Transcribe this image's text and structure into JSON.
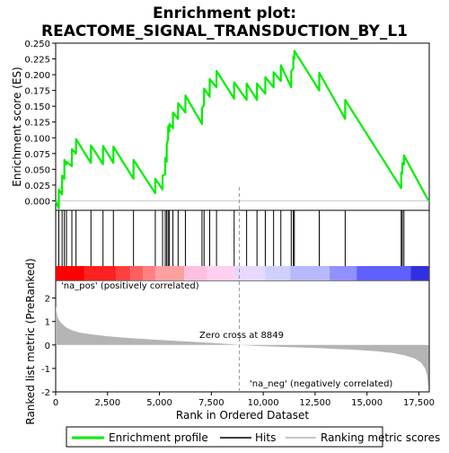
{
  "title_line1": "Enrichment plot:",
  "title_line2": "REACTOME_SIGNAL_TRANSDUCTION_BY_L1",
  "top_ylabel": "Enrichment score (ES)",
  "bottom_ylabel": "Ranked list metric (PreRanked)",
  "xlabel": "Rank in Ordered Dataset",
  "pos_label": "'na_pos' (positively correlated)",
  "neg_label": "'na_neg' (negatively correlated)",
  "zero_cross_label": "Zero cross at 8849",
  "legend": {
    "enrichment": "Enrichment profile",
    "hits": "Hits",
    "metric": "Ranking metric scores"
  },
  "colors": {
    "enrichment_line": "#00ee00",
    "metric_fill": "#b4b4b4",
    "pos_label": "#ff0000",
    "neg_label": "#0000cc",
    "zero_cross_line": "#999999"
  },
  "chart_data": {
    "type": "line",
    "x_range": [
      0,
      18000
    ],
    "x_ticks": [
      0,
      2500,
      5000,
      7500,
      10000,
      12500,
      15000,
      17500
    ],
    "x_tick_labels": [
      "0",
      "2,500",
      "5,000",
      "7,500",
      "10,000",
      "12,500",
      "15,000",
      "17,500"
    ],
    "es_ylim": [
      -0.015,
      0.25
    ],
    "es_ticks": [
      0.0,
      0.025,
      0.05,
      0.075,
      0.1,
      0.125,
      0.15,
      0.175,
      0.2,
      0.225,
      0.25
    ],
    "es_tick_labels": [
      "0.000",
      "0.025",
      "0.050",
      "0.075",
      "0.100",
      "0.125",
      "0.150",
      "0.175",
      "0.200",
      "0.225",
      "0.250"
    ],
    "metric_ylim": [
      -2.0,
      2.75
    ],
    "metric_ticks": [
      -2,
      -1,
      0,
      1,
      2
    ],
    "metric_tick_labels": [
      "-2",
      "-1",
      "0",
      "1",
      "2"
    ],
    "zero_cross": 8849,
    "n_genes": 17969,
    "hits": [
      150,
      310,
      420,
      520,
      780,
      980,
      1700,
      2280,
      2780,
      3750,
      4800,
      5150,
      5280,
      5350,
      5420,
      5480,
      5650,
      5900,
      6250,
      7050,
      7150,
      7420,
      7750,
      8600,
      9200,
      9700,
      10100,
      10500,
      10850,
      11350,
      11450,
      11500,
      12700,
      13950,
      16650,
      16700,
      16780
    ],
    "enrichment_profile": [
      [
        0,
        0.0
      ],
      [
        150,
        -0.012
      ],
      [
        151,
        0.018
      ],
      [
        310,
        0.01
      ],
      [
        311,
        0.04
      ],
      [
        420,
        0.035
      ],
      [
        421,
        0.065
      ],
      [
        520,
        0.058
      ],
      [
        521,
        0.062
      ],
      [
        780,
        0.055
      ],
      [
        781,
        0.082
      ],
      [
        980,
        0.075
      ],
      [
        981,
        0.098
      ],
      [
        1700,
        0.06
      ],
      [
        1701,
        0.088
      ],
      [
        2280,
        0.058
      ],
      [
        2281,
        0.087
      ],
      [
        2780,
        0.06
      ],
      [
        2781,
        0.086
      ],
      [
        3750,
        0.035
      ],
      [
        3751,
        0.065
      ],
      [
        4800,
        0.012
      ],
      [
        4801,
        0.035
      ],
      [
        5150,
        0.018
      ],
      [
        5151,
        0.04
      ],
      [
        5280,
        0.042
      ],
      [
        5281,
        0.068
      ],
      [
        5350,
        0.062
      ],
      [
        5351,
        0.09
      ],
      [
        5420,
        0.098
      ],
      [
        5421,
        0.118
      ],
      [
        5480,
        0.11
      ],
      [
        5481,
        0.122
      ],
      [
        5650,
        0.115
      ],
      [
        5651,
        0.14
      ],
      [
        5900,
        0.13
      ],
      [
        5901,
        0.155
      ],
      [
        6250,
        0.14
      ],
      [
        6251,
        0.167
      ],
      [
        7050,
        0.122
      ],
      [
        7051,
        0.147
      ],
      [
        7150,
        0.152
      ],
      [
        7151,
        0.178
      ],
      [
        7420,
        0.165
      ],
      [
        7421,
        0.193
      ],
      [
        7750,
        0.18
      ],
      [
        7751,
        0.206
      ],
      [
        8600,
        0.162
      ],
      [
        8601,
        0.188
      ],
      [
        9200,
        0.16
      ],
      [
        9201,
        0.186
      ],
      [
        9700,
        0.16
      ],
      [
        9701,
        0.186
      ],
      [
        10100,
        0.17
      ],
      [
        10101,
        0.196
      ],
      [
        10500,
        0.18
      ],
      [
        10501,
        0.204
      ],
      [
        10850,
        0.19
      ],
      [
        10851,
        0.215
      ],
      [
        11350,
        0.18
      ],
      [
        11351,
        0.205
      ],
      [
        11450,
        0.21
      ],
      [
        11451,
        0.228
      ],
      [
        11500,
        0.225
      ],
      [
        11501,
        0.238
      ],
      [
        12700,
        0.175
      ],
      [
        12701,
        0.203
      ],
      [
        13950,
        0.13
      ],
      [
        13951,
        0.16
      ],
      [
        16650,
        0.02
      ],
      [
        16651,
        0.045
      ],
      [
        16700,
        0.043
      ],
      [
        16701,
        0.06
      ],
      [
        16780,
        0.057
      ],
      [
        16781,
        0.072
      ],
      [
        17969,
        0.0
      ]
    ],
    "metric_profile": [
      [
        0,
        1.65
      ],
      [
        100,
        1.15
      ],
      [
        250,
        0.95
      ],
      [
        500,
        0.75
      ],
      [
        800,
        0.62
      ],
      [
        1200,
        0.52
      ],
      [
        1800,
        0.44
      ],
      [
        2500,
        0.37
      ],
      [
        3500,
        0.3
      ],
      [
        4500,
        0.24
      ],
      [
        5500,
        0.19
      ],
      [
        6500,
        0.14
      ],
      [
        7500,
        0.09
      ],
      [
        8500,
        0.03
      ],
      [
        8849,
        0.0
      ],
      [
        9500,
        -0.03
      ],
      [
        10500,
        -0.07
      ],
      [
        11500,
        -0.1
      ],
      [
        12500,
        -0.13
      ],
      [
        13500,
        -0.17
      ],
      [
        14500,
        -0.21
      ],
      [
        15500,
        -0.27
      ],
      [
        16200,
        -0.34
      ],
      [
        16800,
        -0.44
      ],
      [
        17300,
        -0.58
      ],
      [
        17600,
        -0.75
      ],
      [
        17800,
        -1.0
      ],
      [
        17900,
        -1.3
      ],
      [
        17969,
        -1.85
      ]
    ],
    "band_colors": [
      "#ff0000",
      "#ff2020",
      "#ff4040",
      "#ff6060",
      "#ff8080",
      "#ffa0a0",
      "#ffc0e0",
      "#ffd0f0",
      "#e8d8ff",
      "#d0d0ff",
      "#b8b8ff",
      "#9090ff",
      "#6060ff",
      "#3030e0",
      "#1010c0"
    ],
    "band_edges": [
      0,
      1400,
      2900,
      3600,
      4200,
      4800,
      6200,
      7300,
      8600,
      10100,
      11300,
      13200,
      14500,
      17100,
      17969
    ]
  }
}
